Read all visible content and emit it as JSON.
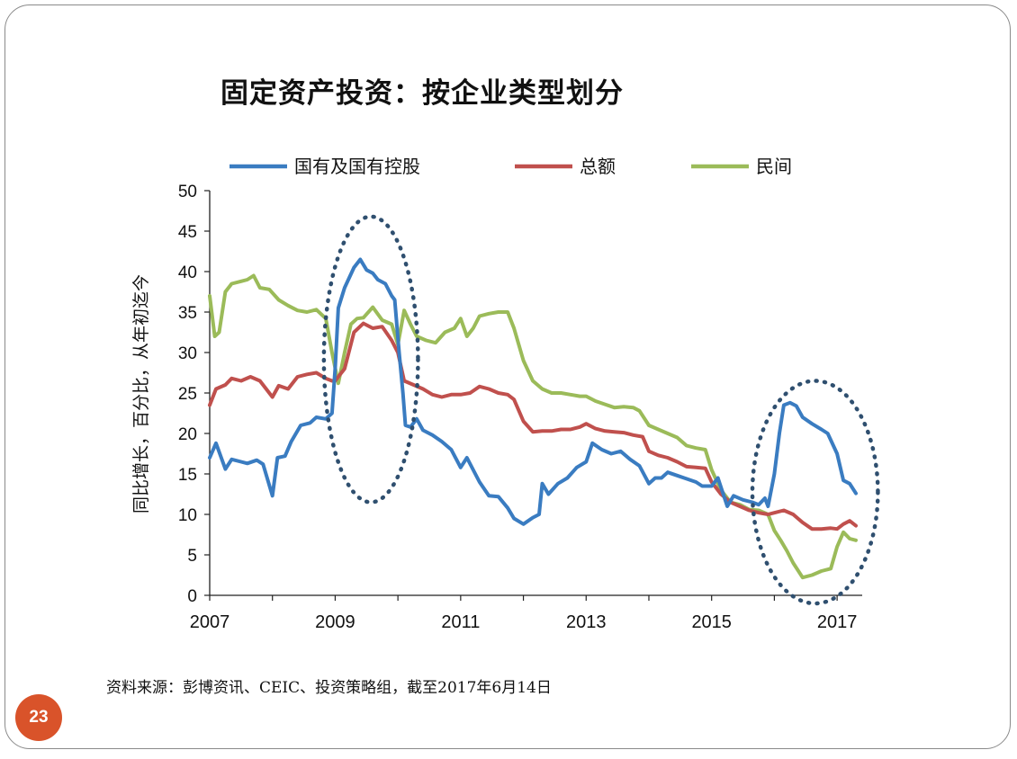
{
  "slide": {
    "title": "固定资产投资：按企业类型划分",
    "source": "资料来源：彭博资讯、CEIC、投资策略组，截至2017年6月14日",
    "page_number": "23",
    "accent_color": "#d9532a"
  },
  "chart_data": {
    "type": "line",
    "title": "",
    "xlabel": "",
    "ylabel": "同比增长，百分比，从年初迄今",
    "xlim": [
      2007,
      2017.4
    ],
    "ylim": [
      0,
      50
    ],
    "yticks": [
      "0",
      "5",
      "10",
      "15",
      "20",
      "25",
      "30",
      "35",
      "40",
      "45",
      "50"
    ],
    "xticks": [
      "2007",
      "2009",
      "2011",
      "2013",
      "2015",
      "2017"
    ],
    "grid": false,
    "legend_position": "top",
    "series": [
      {
        "name": "国有及国有控股",
        "color": "#3a7cc1",
        "points": [
          [
            2007.0,
            17.0
          ],
          [
            2007.1,
            18.8
          ],
          [
            2007.25,
            15.6
          ],
          [
            2007.35,
            16.8
          ],
          [
            2007.5,
            16.5
          ],
          [
            2007.6,
            16.3
          ],
          [
            2007.75,
            16.7
          ],
          [
            2007.85,
            16.2
          ],
          [
            2008.0,
            12.3
          ],
          [
            2008.08,
            17.0
          ],
          [
            2008.2,
            17.2
          ],
          [
            2008.3,
            19.0
          ],
          [
            2008.45,
            21.0
          ],
          [
            2008.6,
            21.3
          ],
          [
            2008.7,
            22.0
          ],
          [
            2008.85,
            21.8
          ],
          [
            2008.95,
            22.5
          ],
          [
            2009.0,
            28.0
          ],
          [
            2009.05,
            35.5
          ],
          [
            2009.15,
            38.0
          ],
          [
            2009.3,
            40.5
          ],
          [
            2009.4,
            41.5
          ],
          [
            2009.5,
            40.2
          ],
          [
            2009.6,
            39.8
          ],
          [
            2009.68,
            39.0
          ],
          [
            2009.8,
            38.5
          ],
          [
            2009.9,
            37.0
          ],
          [
            2009.95,
            36.5
          ],
          [
            2010.02,
            30.0
          ],
          [
            2010.08,
            25.0
          ],
          [
            2010.12,
            21.0
          ],
          [
            2010.2,
            20.8
          ],
          [
            2010.3,
            21.8
          ],
          [
            2010.4,
            20.4
          ],
          [
            2010.55,
            19.8
          ],
          [
            2010.7,
            19.0
          ],
          [
            2010.85,
            18.0
          ],
          [
            2011.0,
            15.8
          ],
          [
            2011.1,
            17.0
          ],
          [
            2011.2,
            15.5
          ],
          [
            2011.3,
            14.0
          ],
          [
            2011.45,
            12.3
          ],
          [
            2011.6,
            12.2
          ],
          [
            2011.75,
            10.8
          ],
          [
            2011.85,
            9.5
          ],
          [
            2012.0,
            8.8
          ],
          [
            2012.15,
            9.6
          ],
          [
            2012.25,
            10.0
          ],
          [
            2012.3,
            13.8
          ],
          [
            2012.4,
            12.5
          ],
          [
            2012.55,
            13.8
          ],
          [
            2012.7,
            14.5
          ],
          [
            2012.85,
            15.8
          ],
          [
            2013.0,
            16.5
          ],
          [
            2013.1,
            18.8
          ],
          [
            2013.25,
            18.0
          ],
          [
            2013.4,
            17.5
          ],
          [
            2013.55,
            17.8
          ],
          [
            2013.7,
            16.8
          ],
          [
            2013.85,
            16.0
          ],
          [
            2014.0,
            13.8
          ],
          [
            2014.1,
            14.5
          ],
          [
            2014.2,
            14.5
          ],
          [
            2014.3,
            15.2
          ],
          [
            2014.45,
            14.8
          ],
          [
            2014.6,
            14.4
          ],
          [
            2014.75,
            14.0
          ],
          [
            2014.85,
            13.5
          ],
          [
            2015.0,
            13.5
          ],
          [
            2015.1,
            14.5
          ],
          [
            2015.25,
            11.0
          ],
          [
            2015.35,
            12.3
          ],
          [
            2015.5,
            11.8
          ],
          [
            2015.65,
            11.5
          ],
          [
            2015.75,
            11.2
          ],
          [
            2015.85,
            12.0
          ],
          [
            2015.9,
            11.0
          ],
          [
            2016.0,
            15.0
          ],
          [
            2016.08,
            20.0
          ],
          [
            2016.15,
            23.5
          ],
          [
            2016.25,
            23.8
          ],
          [
            2016.35,
            23.4
          ],
          [
            2016.45,
            22.0
          ],
          [
            2016.6,
            21.2
          ],
          [
            2016.75,
            20.5
          ],
          [
            2016.85,
            20.0
          ],
          [
            2017.0,
            17.5
          ],
          [
            2017.1,
            14.2
          ],
          [
            2017.2,
            13.8
          ],
          [
            2017.3,
            12.6
          ]
        ]
      },
      {
        "name": "总额",
        "color": "#c0504d",
        "points": [
          [
            2007.0,
            23.5
          ],
          [
            2007.1,
            25.5
          ],
          [
            2007.25,
            26.0
          ],
          [
            2007.35,
            26.8
          ],
          [
            2007.5,
            26.5
          ],
          [
            2007.65,
            27.0
          ],
          [
            2007.8,
            26.5
          ],
          [
            2008.0,
            24.5
          ],
          [
            2008.1,
            25.9
          ],
          [
            2008.25,
            25.5
          ],
          [
            2008.4,
            27.0
          ],
          [
            2008.55,
            27.3
          ],
          [
            2008.7,
            27.5
          ],
          [
            2008.85,
            26.8
          ],
          [
            2008.95,
            26.5
          ],
          [
            2009.0,
            26.5
          ],
          [
            2009.15,
            28.0
          ],
          [
            2009.3,
            32.5
          ],
          [
            2009.45,
            33.6
          ],
          [
            2009.6,
            33.0
          ],
          [
            2009.75,
            33.2
          ],
          [
            2009.9,
            31.5
          ],
          [
            2010.0,
            30.0
          ],
          [
            2010.1,
            26.5
          ],
          [
            2010.25,
            26.0
          ],
          [
            2010.4,
            25.5
          ],
          [
            2010.55,
            24.8
          ],
          [
            2010.7,
            24.5
          ],
          [
            2010.85,
            24.8
          ],
          [
            2011.0,
            24.8
          ],
          [
            2011.15,
            25.0
          ],
          [
            2011.3,
            25.8
          ],
          [
            2011.45,
            25.5
          ],
          [
            2011.6,
            25.0
          ],
          [
            2011.75,
            24.8
          ],
          [
            2011.85,
            24.2
          ],
          [
            2012.0,
            21.5
          ],
          [
            2012.15,
            20.2
          ],
          [
            2012.3,
            20.3
          ],
          [
            2012.45,
            20.3
          ],
          [
            2012.6,
            20.5
          ],
          [
            2012.75,
            20.5
          ],
          [
            2012.9,
            20.8
          ],
          [
            2013.0,
            21.2
          ],
          [
            2013.15,
            20.6
          ],
          [
            2013.3,
            20.3
          ],
          [
            2013.45,
            20.2
          ],
          [
            2013.6,
            20.1
          ],
          [
            2013.75,
            19.8
          ],
          [
            2013.9,
            19.6
          ],
          [
            2014.0,
            17.8
          ],
          [
            2014.15,
            17.3
          ],
          [
            2014.3,
            17.0
          ],
          [
            2014.45,
            16.5
          ],
          [
            2014.6,
            15.9
          ],
          [
            2014.75,
            15.8
          ],
          [
            2014.9,
            15.7
          ],
          [
            2015.0,
            14.0
          ],
          [
            2015.15,
            12.5
          ],
          [
            2015.3,
            11.5
          ],
          [
            2015.45,
            11.0
          ],
          [
            2015.6,
            10.5
          ],
          [
            2015.75,
            10.2
          ],
          [
            2015.9,
            10.0
          ],
          [
            2016.0,
            10.2
          ],
          [
            2016.15,
            10.5
          ],
          [
            2016.3,
            10.0
          ],
          [
            2016.45,
            9.0
          ],
          [
            2016.6,
            8.2
          ],
          [
            2016.75,
            8.2
          ],
          [
            2016.9,
            8.3
          ],
          [
            2017.0,
            8.2
          ],
          [
            2017.1,
            8.8
          ],
          [
            2017.2,
            9.2
          ],
          [
            2017.3,
            8.6
          ]
        ]
      },
      {
        "name": "民间",
        "color": "#9bbb59",
        "points": [
          [
            2007.0,
            37.0
          ],
          [
            2007.08,
            32.0
          ],
          [
            2007.15,
            32.5
          ],
          [
            2007.25,
            37.5
          ],
          [
            2007.35,
            38.5
          ],
          [
            2007.5,
            38.8
          ],
          [
            2007.6,
            39.0
          ],
          [
            2007.7,
            39.5
          ],
          [
            2007.8,
            38.0
          ],
          [
            2007.95,
            37.8
          ],
          [
            2008.1,
            36.5
          ],
          [
            2008.25,
            35.8
          ],
          [
            2008.4,
            35.2
          ],
          [
            2008.55,
            35.0
          ],
          [
            2008.7,
            35.3
          ],
          [
            2008.85,
            34.2
          ],
          [
            2008.95,
            30.0
          ],
          [
            2009.05,
            26.2
          ],
          [
            2009.15,
            30.0
          ],
          [
            2009.25,
            33.5
          ],
          [
            2009.35,
            34.2
          ],
          [
            2009.45,
            34.3
          ],
          [
            2009.6,
            35.6
          ],
          [
            2009.75,
            34.0
          ],
          [
            2009.9,
            33.5
          ],
          [
            2010.0,
            31.0
          ],
          [
            2010.1,
            35.2
          ],
          [
            2010.2,
            33.5
          ],
          [
            2010.3,
            32.0
          ],
          [
            2010.45,
            31.5
          ],
          [
            2010.6,
            31.2
          ],
          [
            2010.75,
            32.5
          ],
          [
            2010.9,
            33.0
          ],
          [
            2011.0,
            34.2
          ],
          [
            2011.1,
            32.0
          ],
          [
            2011.2,
            33.0
          ],
          [
            2011.3,
            34.5
          ],
          [
            2011.45,
            34.8
          ],
          [
            2011.6,
            35.0
          ],
          [
            2011.75,
            35.0
          ],
          [
            2011.85,
            33.0
          ],
          [
            2012.0,
            29.0
          ],
          [
            2012.15,
            26.5
          ],
          [
            2012.3,
            25.5
          ],
          [
            2012.45,
            25.0
          ],
          [
            2012.6,
            25.0
          ],
          [
            2012.75,
            24.8
          ],
          [
            2012.9,
            24.6
          ],
          [
            2013.0,
            24.6
          ],
          [
            2013.15,
            24.0
          ],
          [
            2013.3,
            23.6
          ],
          [
            2013.45,
            23.2
          ],
          [
            2013.6,
            23.3
          ],
          [
            2013.75,
            23.2
          ],
          [
            2013.85,
            22.8
          ],
          [
            2014.0,
            21.0
          ],
          [
            2014.15,
            20.5
          ],
          [
            2014.3,
            20.0
          ],
          [
            2014.45,
            19.5
          ],
          [
            2014.6,
            18.5
          ],
          [
            2014.75,
            18.2
          ],
          [
            2014.9,
            18.0
          ],
          [
            2015.0,
            15.5
          ],
          [
            2015.15,
            13.0
          ],
          [
            2015.3,
            11.5
          ],
          [
            2015.45,
            11.2
          ],
          [
            2015.6,
            10.6
          ],
          [
            2015.75,
            10.5
          ],
          [
            2015.9,
            10.0
          ],
          [
            2016.0,
            8.0
          ],
          [
            2016.1,
            6.8
          ],
          [
            2016.2,
            5.5
          ],
          [
            2016.3,
            4.0
          ],
          [
            2016.45,
            2.2
          ],
          [
            2016.6,
            2.5
          ],
          [
            2016.75,
            3.0
          ],
          [
            2016.9,
            3.3
          ],
          [
            2017.0,
            6.0
          ],
          [
            2017.1,
            7.8
          ],
          [
            2017.2,
            7.0
          ],
          [
            2017.3,
            6.8
          ]
        ]
      }
    ],
    "annotations": [
      {
        "shape": "dotted-ellipse",
        "color": "#2f4f6f",
        "x_range": [
          2008.82,
          2010.32
        ],
        "y_range": [
          11.5,
          46.8
        ]
      },
      {
        "shape": "dotted-ellipse",
        "color": "#2f4f6f",
        "x_range": [
          2015.65,
          2017.65
        ],
        "y_range": [
          -1.0,
          26.5
        ]
      }
    ]
  }
}
